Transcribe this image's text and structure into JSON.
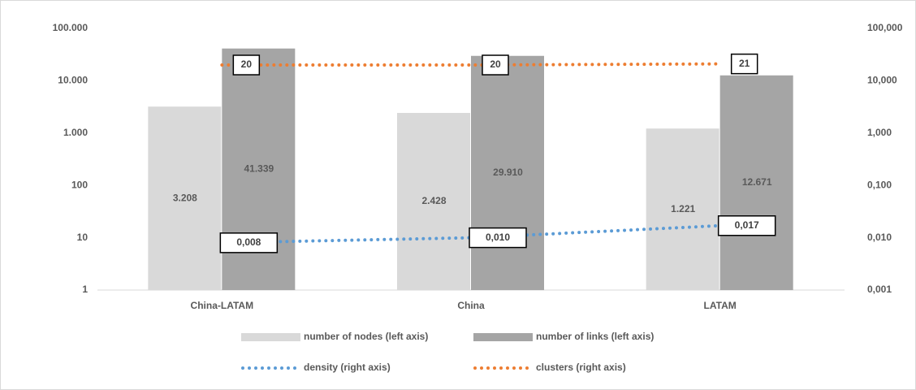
{
  "chart_data": {
    "type": "bar",
    "log_scale": true,
    "grid": false,
    "categories": [
      "China-LATAM",
      "China",
      "LATAM"
    ],
    "ylim": [
      1,
      100000
    ],
    "yticks": [
      1,
      10,
      100,
      {
        "value": 1000,
        "label": "1.000"
      },
      {
        "value": 10000,
        "label": "10.000"
      },
      {
        "value": 100000,
        "label": "100.000"
      }
    ],
    "y2lim": [
      0.001,
      100
    ],
    "y2ticks": [
      {
        "value": 0.001,
        "label": "0,001"
      },
      {
        "value": 0.01,
        "label": "0,010"
      },
      {
        "value": 0.1,
        "label": "0,100"
      },
      {
        "value": 1,
        "label": "1,000"
      },
      {
        "value": 10,
        "label": "10,000"
      },
      {
        "value": 100,
        "label": "100,000"
      }
    ],
    "series": [
      {
        "name": "number of nodes (left axis)",
        "type": "bar",
        "color": "#d9d9d9",
        "values": [
          3208,
          2428,
          1221
        ],
        "value_labels": [
          "3.208",
          "2.428",
          "1.221"
        ]
      },
      {
        "name": "number of links (left axis)",
        "type": "bar",
        "color": "#a5a5a5",
        "values": [
          41339,
          29910,
          12671
        ],
        "value_labels": [
          "41.339",
          "29.910",
          "12.671"
        ]
      },
      {
        "name": "density (right axis)",
        "type": "line",
        "axis": "y2",
        "color": "#5b9bd5",
        "values": [
          0.008,
          0.01,
          0.017
        ],
        "value_labels": [
          "0,008",
          "0,010",
          "0,017"
        ]
      },
      {
        "name": "clusters (right axis)",
        "type": "line",
        "axis": "y2",
        "color": "#ed7d31",
        "values": [
          20,
          20,
          21
        ]
      }
    ]
  }
}
